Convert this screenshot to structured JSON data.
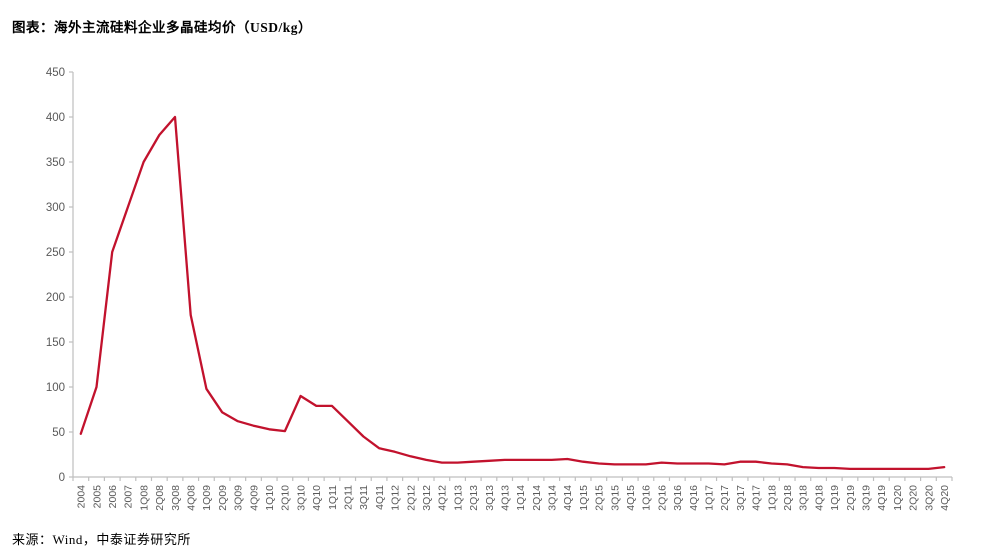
{
  "header": {
    "title": "图表：海外主流硅料企业多晶硅均价（USD/kg）"
  },
  "footer": {
    "source": "来源：Wind，中泰证券研究所"
  },
  "chart_data": {
    "type": "line",
    "title": "海外主流硅料企业多晶硅均价（USD/kg）",
    "xlabel": "",
    "ylabel": "",
    "ylim": [
      0,
      450
    ],
    "ytick_interval": 50,
    "ytick_labels": [
      "0",
      "50",
      "100",
      "150",
      "200",
      "250",
      "300",
      "350",
      "400",
      "450"
    ],
    "grid": false,
    "legend_position": "none",
    "categories": [
      "2004",
      "2005",
      "2006",
      "2007",
      "1Q08",
      "2Q08",
      "3Q08",
      "4Q08",
      "1Q09",
      "2Q09",
      "3Q09",
      "4Q09",
      "1Q10",
      "2Q10",
      "3Q10",
      "4Q10",
      "1Q11",
      "2Q11",
      "3Q11",
      "4Q11",
      "1Q12",
      "2Q12",
      "3Q12",
      "4Q12",
      "1Q13",
      "2Q13",
      "3Q13",
      "4Q13",
      "1Q14",
      "2Q14",
      "3Q14",
      "4Q14",
      "1Q15",
      "2Q15",
      "3Q15",
      "4Q15",
      "1Q16",
      "2Q16",
      "3Q16",
      "4Q16",
      "1Q17",
      "2Q17",
      "3Q17",
      "4Q17",
      "1Q18",
      "2Q18",
      "3Q18",
      "4Q18",
      "1Q19",
      "2Q19",
      "3Q19",
      "4Q19",
      "1Q20",
      "2Q20",
      "3Q20",
      "4Q20"
    ],
    "series": [
      {
        "name": "多晶硅均价",
        "values": [
          48,
          100,
          250,
          300,
          350,
          380,
          400,
          180,
          98,
          72,
          62,
          57,
          53,
          51,
          90,
          79,
          79,
          62,
          45,
          32,
          28,
          23,
          19,
          16,
          16,
          17,
          18,
          19,
          19,
          19,
          19,
          20,
          17,
          15,
          14,
          14,
          14,
          16,
          15,
          15,
          15,
          14,
          17,
          17,
          15,
          14,
          11,
          10,
          10,
          9,
          9,
          9,
          9,
          9,
          9,
          11
        ]
      }
    ],
    "colors": {
      "line": "#c2122d",
      "axis": "#bfbfbf",
      "tick_label": "#595959",
      "background": "#ffffff"
    }
  }
}
